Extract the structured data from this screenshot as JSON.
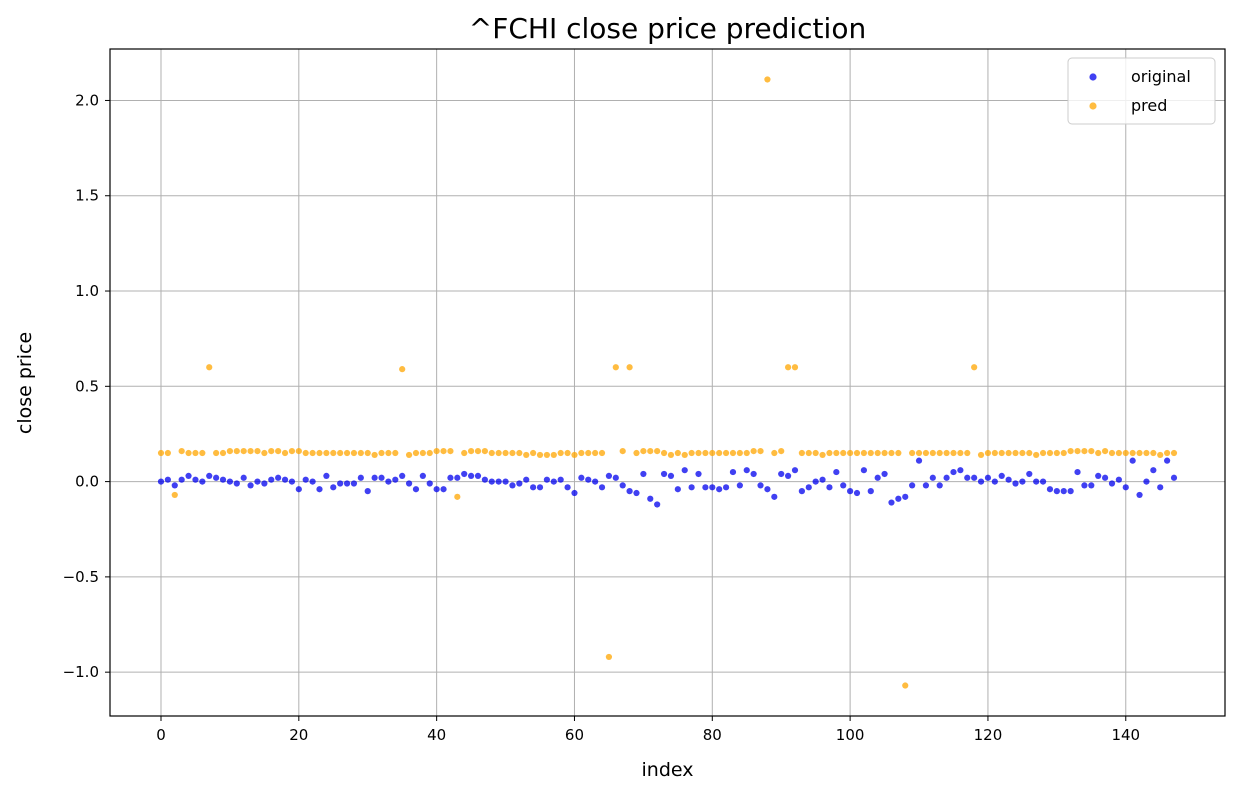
{
  "chart_data": {
    "type": "scatter",
    "title": "^FCHI close price prediction",
    "xlabel": "index",
    "ylabel": "close price",
    "xlim": [
      -7.4,
      154.4
    ],
    "ylim": [
      -1.23,
      2.27
    ],
    "xticks": [
      0,
      20,
      40,
      60,
      80,
      100,
      120,
      140
    ],
    "yticks": [
      -1.0,
      -0.5,
      0.0,
      0.5,
      1.0,
      1.5,
      2.0
    ],
    "ytick_labels": [
      "−1.0",
      "−0.5",
      "0.0",
      "0.5",
      "1.0",
      "1.5",
      "2.0"
    ],
    "grid": true,
    "legend_position": "top-right",
    "series": [
      {
        "name": "original",
        "color": "#0000ee",
        "x": [
          0,
          1,
          2,
          3,
          4,
          5,
          6,
          7,
          8,
          9,
          10,
          11,
          12,
          13,
          14,
          15,
          16,
          17,
          18,
          19,
          20,
          21,
          22,
          23,
          24,
          25,
          26,
          27,
          28,
          29,
          30,
          31,
          32,
          33,
          34,
          35,
          36,
          37,
          38,
          39,
          40,
          41,
          42,
          43,
          44,
          45,
          46,
          47,
          48,
          49,
          50,
          51,
          52,
          53,
          54,
          55,
          56,
          57,
          58,
          59,
          60,
          61,
          62,
          63,
          64,
          65,
          66,
          67,
          68,
          69,
          70,
          71,
          72,
          73,
          74,
          75,
          76,
          77,
          78,
          79,
          80,
          81,
          82,
          83,
          84,
          85,
          86,
          87,
          88,
          89,
          90,
          91,
          92,
          93,
          94,
          95,
          96,
          97,
          98,
          99,
          100,
          101,
          102,
          103,
          104,
          105,
          106,
          107,
          108,
          109,
          110,
          111,
          112,
          113,
          114,
          115,
          116,
          117,
          118,
          119,
          120,
          121,
          122,
          123,
          124,
          125,
          126,
          127,
          128,
          129,
          130,
          131,
          132,
          133,
          134,
          135,
          136,
          137,
          138,
          139,
          140,
          141,
          142,
          143,
          144,
          145,
          146,
          147
        ],
        "values": [
          0.0,
          0.01,
          -0.02,
          0.01,
          0.03,
          0.01,
          0.0,
          0.03,
          0.02,
          0.01,
          0.0,
          -0.01,
          0.02,
          -0.02,
          0.0,
          -0.01,
          0.01,
          0.02,
          0.01,
          0.0,
          -0.04,
          0.01,
          0.0,
          -0.04,
          0.03,
          -0.03,
          -0.01,
          -0.01,
          -0.01,
          0.02,
          -0.05,
          0.02,
          0.02,
          0.0,
          0.01,
          0.03,
          -0.01,
          -0.04,
          0.03,
          -0.01,
          -0.04,
          -0.04,
          0.02,
          0.02,
          0.04,
          0.03,
          0.03,
          0.01,
          0.0,
          0.0,
          0.0,
          -0.02,
          -0.01,
          0.01,
          -0.03,
          -0.03,
          0.01,
          0.0,
          0.01,
          -0.03,
          -0.06,
          0.02,
          0.01,
          0.0,
          -0.03,
          0.03,
          0.02,
          -0.02,
          -0.05,
          -0.06,
          0.04,
          -0.09,
          -0.12,
          0.04,
          0.03,
          -0.04,
          0.06,
          -0.03,
          0.04,
          -0.03,
          -0.03,
          -0.04,
          -0.03,
          0.05,
          -0.02,
          0.06,
          0.04,
          -0.02,
          -0.04,
          -0.08,
          0.04,
          0.03,
          0.06,
          -0.05,
          -0.03,
          0.0,
          0.01,
          -0.03,
          0.05,
          -0.02,
          -0.05,
          -0.06,
          0.06,
          -0.05,
          0.02,
          0.04,
          -0.11,
          -0.09,
          -0.08,
          -0.02,
          0.11,
          -0.02,
          0.02,
          -0.02,
          0.02,
          0.05,
          0.06,
          0.02,
          0.02,
          0.0,
          0.02,
          0.0,
          0.03,
          0.01,
          -0.01,
          0.0,
          0.04,
          0.0,
          0.0,
          -0.04,
          -0.05,
          -0.05,
          -0.05,
          0.05,
          -0.02,
          -0.02,
          0.03,
          0.02,
          -0.01,
          0.01,
          -0.03,
          0.11,
          -0.07,
          0.0,
          0.06,
          -0.03,
          0.11,
          0.02
        ]
      },
      {
        "name": "pred",
        "color": "#ffa500",
        "x": [
          0,
          1,
          2,
          3,
          4,
          5,
          6,
          7,
          8,
          9,
          10,
          11,
          12,
          13,
          14,
          15,
          16,
          17,
          18,
          19,
          20,
          21,
          22,
          23,
          24,
          25,
          26,
          27,
          28,
          29,
          30,
          31,
          32,
          33,
          34,
          35,
          36,
          37,
          38,
          39,
          40,
          41,
          42,
          43,
          44,
          45,
          46,
          47,
          48,
          49,
          50,
          51,
          52,
          53,
          54,
          55,
          56,
          57,
          58,
          59,
          60,
          61,
          62,
          63,
          64,
          65,
          66,
          67,
          68,
          69,
          70,
          71,
          72,
          73,
          74,
          75,
          76,
          77,
          78,
          79,
          80,
          81,
          82,
          83,
          84,
          85,
          86,
          87,
          88,
          89,
          90,
          91,
          92,
          93,
          94,
          95,
          96,
          97,
          98,
          99,
          100,
          101,
          102,
          103,
          104,
          105,
          106,
          107,
          108,
          109,
          110,
          111,
          112,
          113,
          114,
          115,
          116,
          117,
          118,
          119,
          120,
          121,
          122,
          123,
          124,
          125,
          126,
          127,
          128,
          129,
          130,
          131,
          132,
          133,
          134,
          135,
          136,
          137,
          138,
          139,
          140,
          141,
          142,
          143,
          144,
          145,
          146,
          147
        ],
        "values": [
          0.15,
          0.15,
          -0.07,
          0.16,
          0.15,
          0.15,
          0.15,
          0.6,
          0.15,
          0.15,
          0.16,
          0.16,
          0.16,
          0.16,
          0.16,
          0.15,
          0.16,
          0.16,
          0.15,
          0.16,
          0.16,
          0.15,
          0.15,
          0.15,
          0.15,
          0.15,
          0.15,
          0.15,
          0.15,
          0.15,
          0.15,
          0.14,
          0.15,
          0.15,
          0.15,
          0.59,
          0.14,
          0.15,
          0.15,
          0.15,
          0.16,
          0.16,
          0.16,
          -0.08,
          0.15,
          0.16,
          0.16,
          0.16,
          0.15,
          0.15,
          0.15,
          0.15,
          0.15,
          0.14,
          0.15,
          0.14,
          0.14,
          0.14,
          0.15,
          0.15,
          0.14,
          0.15,
          0.15,
          0.15,
          0.15,
          -0.92,
          0.6,
          0.16,
          0.6,
          0.15,
          0.16,
          0.16,
          0.16,
          0.15,
          0.14,
          0.15,
          0.14,
          0.15,
          0.15,
          0.15,
          0.15,
          0.15,
          0.15,
          0.15,
          0.15,
          0.15,
          0.16,
          0.16,
          2.11,
          0.15,
          0.16,
          0.6,
          0.6,
          0.15,
          0.15,
          0.15,
          0.14,
          0.15,
          0.15,
          0.15,
          0.15,
          0.15,
          0.15,
          0.15,
          0.15,
          0.15,
          0.15,
          0.15,
          -1.07,
          0.15,
          0.15,
          0.15,
          0.15,
          0.15,
          0.15,
          0.15,
          0.15,
          0.15,
          0.6,
          0.14,
          0.15,
          0.15,
          0.15,
          0.15,
          0.15,
          0.15,
          0.15,
          0.14,
          0.15,
          0.15,
          0.15,
          0.15,
          0.16,
          0.16,
          0.16,
          0.16,
          0.15,
          0.16,
          0.15,
          0.15,
          0.15,
          0.15,
          0.15,
          0.15,
          0.15,
          0.14,
          0.15,
          0.15
        ]
      }
    ]
  }
}
